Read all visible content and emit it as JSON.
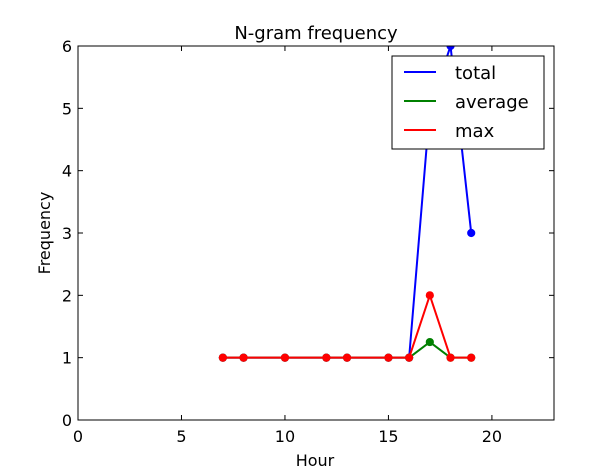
{
  "chart_data": {
    "type": "line",
    "title": "N-gram frequency",
    "xlabel": "Hour",
    "ylabel": "Frequency",
    "xlim": [
      0,
      23
    ],
    "ylim": [
      0,
      6
    ],
    "xticks": [
      0,
      5,
      10,
      15,
      20
    ],
    "yticks": [
      0,
      1,
      2,
      3,
      4,
      5,
      6
    ],
    "grid": false,
    "legend_position": "top-right",
    "series": [
      {
        "name": "total",
        "color": "#0000ff",
        "x": [
          7,
          8,
          10,
          12,
          13,
          15,
          16,
          17,
          18,
          19
        ],
        "y": [
          1,
          1,
          1,
          1,
          1,
          1,
          1,
          5,
          6,
          3
        ]
      },
      {
        "name": "average",
        "color": "#008000",
        "x": [
          7,
          8,
          10,
          12,
          13,
          15,
          16,
          17,
          18,
          19
        ],
        "y": [
          1,
          1,
          1,
          1,
          1,
          1,
          1,
          1.25,
          1,
          1
        ]
      },
      {
        "name": "max",
        "color": "#ff0000",
        "x": [
          7,
          8,
          10,
          12,
          13,
          15,
          16,
          17,
          18,
          19
        ],
        "y": [
          1,
          1,
          1,
          1,
          1,
          1,
          1,
          2,
          1,
          1
        ]
      }
    ]
  }
}
